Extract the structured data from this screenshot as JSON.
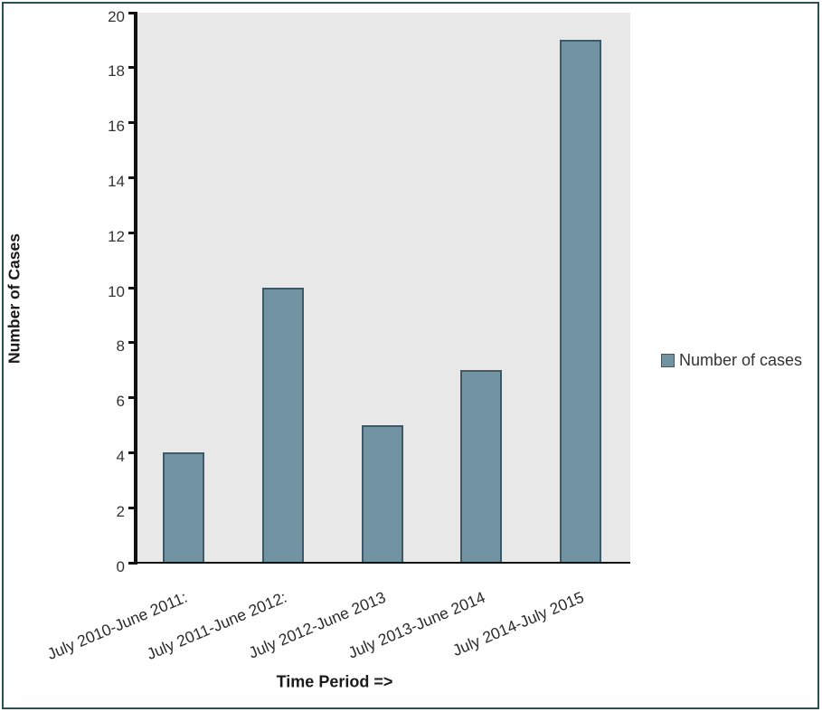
{
  "chart_data": {
    "type": "bar",
    "title": "",
    "categories": [
      "July 2010-June 2011:",
      "July 2011-June 2012:",
      "July 2012-June 2013",
      "July 2013-June 2014",
      "July 2014-July 2015"
    ],
    "values": [
      4,
      10,
      5,
      7,
      19
    ],
    "xlabel": "Time Period =>",
    "ylabel": "Number of Cases",
    "ylim": [
      0,
      20
    ],
    "ytick_step": 2,
    "ytick_labels": [
      "0",
      "2",
      "4",
      "6",
      "8",
      "10",
      "12",
      "14",
      "16",
      "18",
      "20"
    ],
    "legend": [
      {
        "label": "Number of cases"
      }
    ],
    "legend_position": "right",
    "grid": false,
    "colors": {
      "bar_fill": "#7193a2",
      "bar_border": "#3e5a68",
      "plot_background": "#e8e8e8",
      "frame_border": "#2d4f4f",
      "axis_line": "#111111",
      "text": "#262626"
    }
  }
}
